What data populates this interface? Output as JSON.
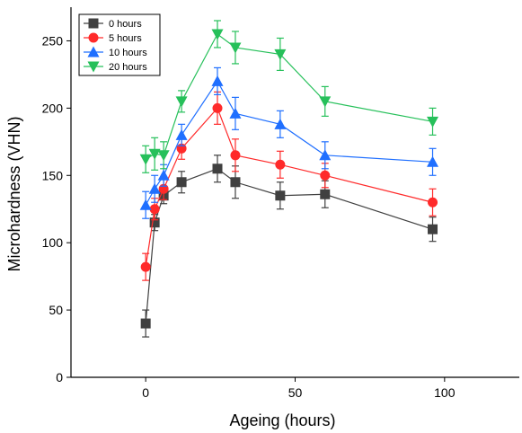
{
  "chart_data": {
    "type": "line",
    "xlabel": "Ageing (hours)",
    "ylabel": "Microhardness (VHN)",
    "xlim": [
      -25,
      125
    ],
    "ylim": [
      0,
      275
    ],
    "x_ticks": [
      0,
      50,
      100
    ],
    "y_ticks": [
      0,
      50,
      100,
      150,
      200,
      250
    ],
    "grid": false,
    "legend_position": "top-left",
    "series": [
      {
        "name": "0 hours",
        "color": "#404040",
        "marker": "square",
        "x": [
          0,
          3,
          6,
          12,
          24,
          30,
          45,
          60,
          96
        ],
        "y": [
          40,
          115,
          135,
          145,
          155,
          145,
          135,
          136,
          110
        ],
        "err": [
          10,
          6,
          6,
          8,
          10,
          12,
          10,
          10,
          9
        ]
      },
      {
        "name": "5 hours",
        "color": "#ff2a2a",
        "marker": "circle",
        "x": [
          0,
          3,
          6,
          12,
          24,
          30,
          45,
          60,
          96
        ],
        "y": [
          82,
          125,
          140,
          170,
          200,
          165,
          158,
          150,
          130
        ],
        "err": [
          10,
          8,
          8,
          8,
          12,
          12,
          10,
          9,
          10
        ]
      },
      {
        "name": "10 hours",
        "color": "#1f6fff",
        "marker": "triangle-up",
        "x": [
          0,
          3,
          6,
          12,
          24,
          30,
          45,
          60,
          96
        ],
        "y": [
          128,
          140,
          150,
          180,
          220,
          196,
          188,
          165,
          160
        ],
        "err": [
          10,
          10,
          8,
          8,
          10,
          12,
          10,
          10,
          10
        ]
      },
      {
        "name": "20 hours",
        "color": "#26c05a",
        "marker": "triangle-down",
        "x": [
          0,
          3,
          6,
          12,
          24,
          30,
          45,
          60,
          96
        ],
        "y": [
          162,
          166,
          165,
          205,
          255,
          245,
          240,
          205,
          190
        ],
        "err": [
          10,
          12,
          10,
          8,
          10,
          12,
          12,
          11,
          10
        ]
      }
    ]
  }
}
